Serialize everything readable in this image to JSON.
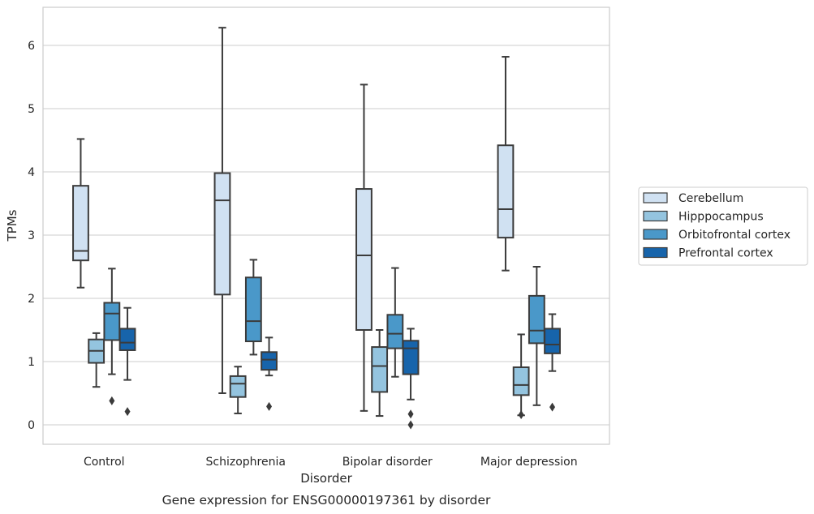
{
  "chart_data": {
    "type": "box",
    "caption": "Gene expression for ENSG00000197361 by disorder",
    "xlabel": "Disorder",
    "ylabel": "TPMs",
    "ylim": [
      -0.3,
      6.6
    ],
    "yticks": [
      0,
      1,
      2,
      3,
      4,
      5,
      6
    ],
    "grid": true,
    "legend_position": "right",
    "categories": [
      "Control",
      "Schizophrenia",
      "Bipolar disorder",
      "Major depression"
    ],
    "series": [
      {
        "name": "Cerebellum",
        "color": "#d0e1f2",
        "boxes": [
          {
            "whisker_low": 2.17,
            "q1": 2.6,
            "median": 2.75,
            "q3": 3.78,
            "whisker_high": 4.52,
            "outliers": []
          },
          {
            "whisker_low": 0.5,
            "q1": 2.06,
            "median": 3.55,
            "q3": 3.98,
            "whisker_high": 6.28,
            "outliers": []
          },
          {
            "whisker_low": 0.22,
            "q1": 1.5,
            "median": 2.68,
            "q3": 3.73,
            "whisker_high": 5.38,
            "outliers": []
          },
          {
            "whisker_low": 2.44,
            "q1": 2.96,
            "median": 3.41,
            "q3": 4.42,
            "whisker_high": 5.82,
            "outliers": []
          }
        ]
      },
      {
        "name": "Hipppocampus",
        "color": "#94c4df",
        "boxes": [
          {
            "whisker_low": 0.6,
            "q1": 0.98,
            "median": 1.17,
            "q3": 1.35,
            "whisker_high": 1.45,
            "outliers": []
          },
          {
            "whisker_low": 0.18,
            "q1": 0.44,
            "median": 0.65,
            "q3": 0.77,
            "whisker_high": 0.92,
            "outliers": []
          },
          {
            "whisker_low": 0.14,
            "q1": 0.52,
            "median": 0.93,
            "q3": 1.23,
            "whisker_high": 1.5,
            "outliers": []
          },
          {
            "whisker_low": 0.15,
            "q1": 0.47,
            "median": 0.63,
            "q3": 0.91,
            "whisker_high": 1.43,
            "outliers": [
              0.16
            ]
          }
        ]
      },
      {
        "name": "Orbitofrontal cortex",
        "color": "#4a98c9",
        "boxes": [
          {
            "whisker_low": 0.8,
            "q1": 1.34,
            "median": 1.76,
            "q3": 1.93,
            "whisker_high": 2.47,
            "outliers": [
              0.38
            ]
          },
          {
            "whisker_low": 1.11,
            "q1": 1.32,
            "median": 1.64,
            "q3": 2.33,
            "whisker_high": 2.61,
            "outliers": []
          },
          {
            "whisker_low": 0.76,
            "q1": 1.21,
            "median": 1.44,
            "q3": 1.74,
            "whisker_high": 2.48,
            "outliers": []
          },
          {
            "whisker_low": 0.31,
            "q1": 1.29,
            "median": 1.49,
            "q3": 2.04,
            "whisker_high": 2.5,
            "outliers": []
          }
        ]
      },
      {
        "name": "Prefrontal cortex",
        "color": "#1764ab",
        "boxes": [
          {
            "whisker_low": 0.71,
            "q1": 1.18,
            "median": 1.3,
            "q3": 1.52,
            "whisker_high": 1.85,
            "outliers": [
              0.21
            ]
          },
          {
            "whisker_low": 0.78,
            "q1": 0.87,
            "median": 1.03,
            "q3": 1.15,
            "whisker_high": 1.38,
            "outliers": [
              0.29
            ]
          },
          {
            "whisker_low": 0.4,
            "q1": 0.8,
            "median": 1.21,
            "q3": 1.33,
            "whisker_high": 1.52,
            "outliers": [
              0.17,
              0.0
            ]
          },
          {
            "whisker_low": 0.85,
            "q1": 1.13,
            "median": 1.27,
            "q3": 1.52,
            "whisker_high": 1.75,
            "outliers": [
              0.28
            ]
          }
        ]
      }
    ]
  }
}
